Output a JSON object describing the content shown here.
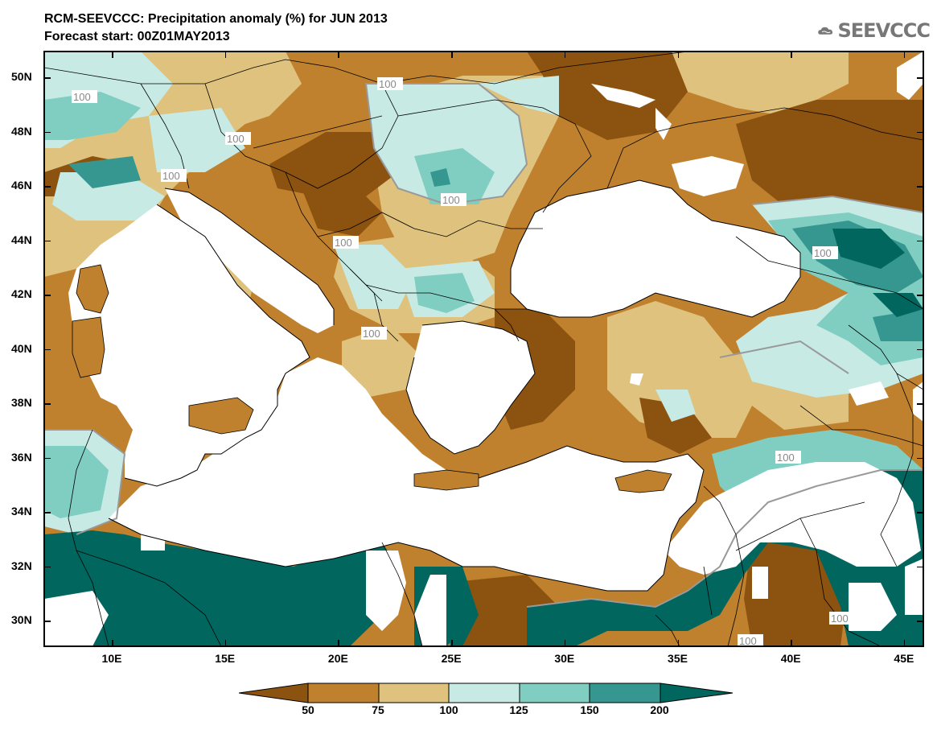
{
  "header": {
    "title": "RCM-SEEVCCC: Precipitation anomaly (%) for JUN 2013",
    "subtitle": "Forecast start: 00Z01MAY2013"
  },
  "logo": {
    "text": "SEEVCCC",
    "icon": "cloud-icon"
  },
  "map": {
    "latitude_labels": [
      "50N",
      "48N",
      "46N",
      "44N",
      "42N",
      "40N",
      "38N",
      "36N",
      "34N",
      "32N",
      "30N"
    ],
    "longitude_labels": [
      "10E",
      "15E",
      "20E",
      "25E",
      "30E",
      "35E",
      "40E",
      "45E"
    ],
    "contour_label": "100",
    "colors": {
      "below_50": "#8c5210",
      "50_75": "#bf812d",
      "75_100": "#dfc27d",
      "100_125": "#c7eae5",
      "125_150": "#80cdc1",
      "150_200": "#35978f",
      "above_200": "#01665e",
      "sea": "#ffffff"
    }
  },
  "colorbar": {
    "labels": [
      "50",
      "75",
      "100",
      "125",
      "150",
      "200"
    ]
  }
}
